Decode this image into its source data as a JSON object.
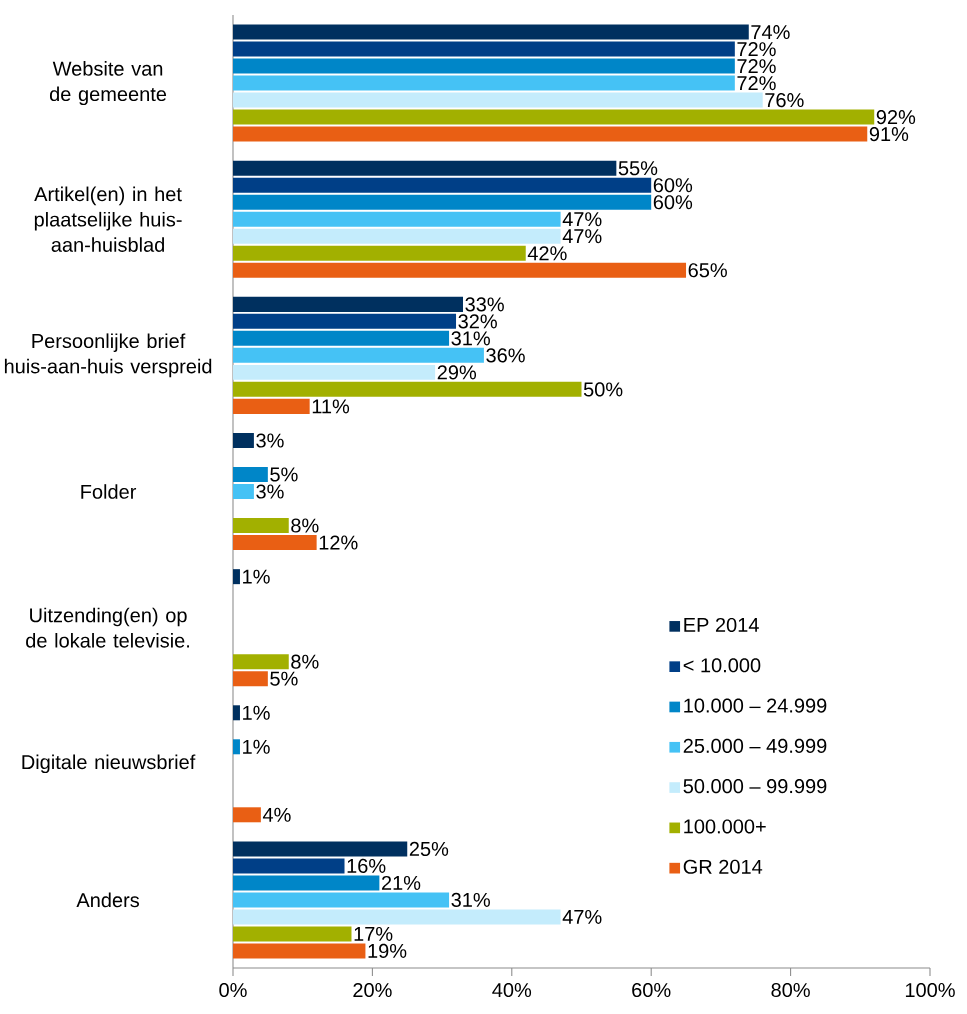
{
  "chart_data": {
    "type": "bar",
    "orientation": "horizontal",
    "categories": [
      "Website van de gemeente",
      "Artikel(en) in het plaatselijke huis-aan-huisblad",
      "Persoonlijke brief huis-aan-huis verspreid",
      "Folder",
      "Uitzending(en) op de lokale televisie.",
      "Digitale nieuwsbrief",
      "Anders"
    ],
    "series": [
      {
        "name": "EP 2014",
        "color": "#00305f",
        "values": [
          74,
          55,
          33,
          3,
          1,
          1,
          25
        ],
        "value_labels": [
          "74%",
          "55%",
          "33%",
          "3%",
          "1%",
          "1%",
          "25%"
        ]
      },
      {
        "name": "< 10.000",
        "color": "#003f87",
        "values": [
          72,
          60,
          32,
          null,
          null,
          null,
          16
        ],
        "value_labels": [
          "72%",
          "60%",
          "32%",
          null,
          null,
          null,
          "16%"
        ]
      },
      {
        "name": "10.000 – 24.999",
        "color": "#0086c8",
        "values": [
          72,
          60,
          31,
          5,
          null,
          1,
          21
        ],
        "value_labels": [
          "72%",
          "60%",
          "31%",
          "5%",
          null,
          "1%",
          "21%"
        ]
      },
      {
        "name": "25.000 – 49.999",
        "color": "#45c2f5",
        "values": [
          72,
          47,
          36,
          3,
          null,
          null,
          31
        ],
        "value_labels": [
          "72%",
          "47%",
          "36%",
          "3%",
          null,
          null,
          "31%"
        ]
      },
      {
        "name": "50.000 – 99.999",
        "color": "#c4ecfc",
        "values": [
          76,
          47,
          29,
          null,
          null,
          null,
          47
        ],
        "value_labels": [
          "76%",
          "47%",
          "29%",
          null,
          null,
          null,
          "47%"
        ]
      },
      {
        "name": "100.000+",
        "color": "#a2b000",
        "values": [
          92,
          42,
          50,
          8,
          8,
          null,
          17
        ],
        "value_labels": [
          "92%",
          "42%",
          "50%",
          "8%",
          "8%",
          null,
          "17%"
        ]
      },
      {
        "name": "GR 2014",
        "color": "#e95f14",
        "values": [
          91,
          65,
          11,
          12,
          5,
          4,
          19
        ],
        "value_labels": [
          "91%",
          "65%",
          "11%",
          "12%",
          "5%",
          "4%",
          "19%"
        ]
      }
    ],
    "xlim": [
      0,
      100
    ],
    "xticks": [
      {
        "value": 0,
        "label": "0%"
      },
      {
        "value": 20,
        "label": "20%"
      },
      {
        "value": 40,
        "label": "40%"
      },
      {
        "value": 60,
        "label": "60%"
      },
      {
        "value": 80,
        "label": "80%"
      },
      {
        "value": 100,
        "label": "100%"
      }
    ],
    "grid": false,
    "legend": "bottom right"
  }
}
